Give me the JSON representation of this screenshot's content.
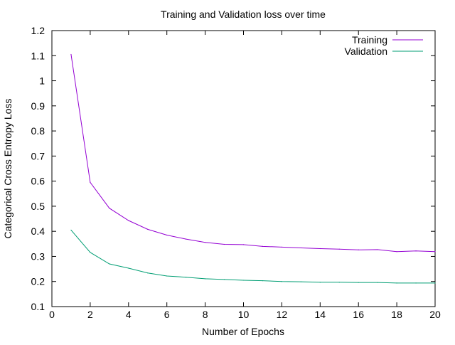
{
  "chart_data": {
    "type": "line",
    "title": "Training and Validation loss over time",
    "xlabel": "Number of Epochs",
    "ylabel": "Categorical Cross Entropy Loss",
    "xlim": [
      0,
      20
    ],
    "ylim": [
      0.1,
      1.2
    ],
    "xticks": [
      0,
      2,
      4,
      6,
      8,
      10,
      12,
      14,
      16,
      18,
      20
    ],
    "yticks": [
      0.1,
      0.2,
      0.3,
      0.4,
      0.5,
      0.6,
      0.7,
      0.8,
      0.9,
      1,
      1.1,
      1.2
    ],
    "ytick_labels": [
      "0.1",
      "0.2",
      "0.3",
      "0.4",
      "0.5",
      "0.6",
      "0.7",
      "0.8",
      "0.9",
      "1",
      "1.1",
      "1.2"
    ],
    "grid": false,
    "legend_position": "top-right",
    "x": [
      1,
      2,
      3,
      4,
      5,
      6,
      7,
      8,
      9,
      10,
      11,
      12,
      13,
      14,
      15,
      16,
      17,
      18,
      19,
      20
    ],
    "series": [
      {
        "name": "Training",
        "color": "#9400d3",
        "values": [
          1.105,
          0.595,
          0.492,
          0.443,
          0.408,
          0.385,
          0.369,
          0.356,
          0.348,
          0.347,
          0.34,
          0.337,
          0.334,
          0.331,
          0.329,
          0.326,
          0.327,
          0.319,
          0.322,
          0.319
        ]
      },
      {
        "name": "Validation",
        "color": "#009e73",
        "values": [
          0.405,
          0.316,
          0.27,
          0.253,
          0.234,
          0.222,
          0.217,
          0.211,
          0.208,
          0.205,
          0.203,
          0.2,
          0.199,
          0.197,
          0.197,
          0.196,
          0.196,
          0.194,
          0.194,
          0.194
        ]
      }
    ]
  }
}
